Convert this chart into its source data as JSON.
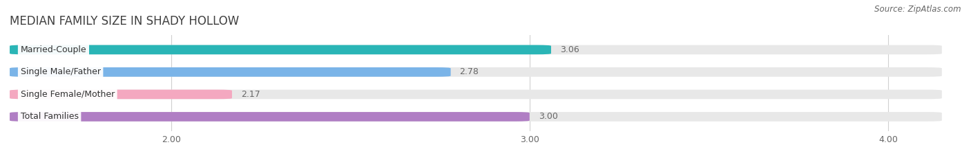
{
  "title": "MEDIAN FAMILY SIZE IN SHADY HOLLOW",
  "source": "Source: ZipAtlas.com",
  "categories": [
    "Married-Couple",
    "Single Male/Father",
    "Single Female/Mother",
    "Total Families"
  ],
  "values": [
    3.06,
    2.78,
    2.17,
    3.0
  ],
  "bar_colors": [
    "#2ab5b6",
    "#7ab4e8",
    "#f4a8c0",
    "#b07ec4"
  ],
  "bar_bg_color": "#e8e8e8",
  "xmin": 1.55,
  "xmax": 4.15,
  "xticks": [
    2.0,
    3.0,
    4.0
  ],
  "xtick_labels": [
    "2.00",
    "3.00",
    "4.00"
  ],
  "background_color": "#ffffff",
  "title_fontsize": 12,
  "label_fontsize": 9,
  "value_fontsize": 9,
  "source_fontsize": 8.5,
  "bar_height": 0.42,
  "gridline_color": "#d0d0d0",
  "text_color": "#666666",
  "title_color": "#404040",
  "title_fontweight": "normal"
}
